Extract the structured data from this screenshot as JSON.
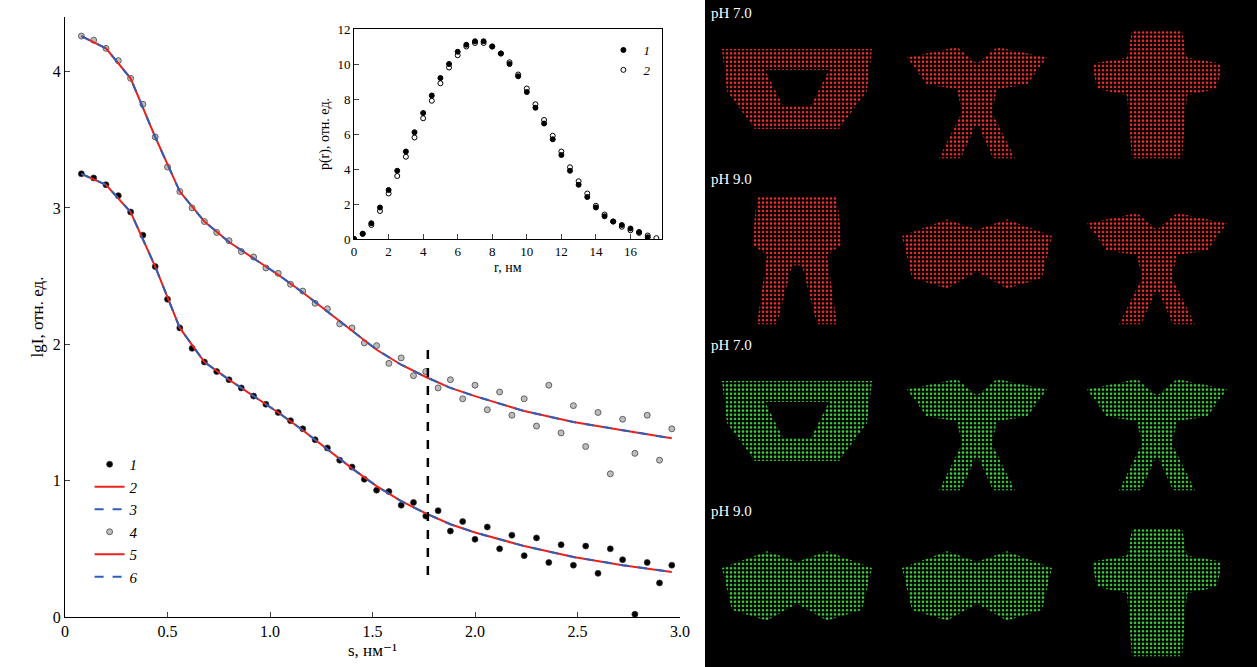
{
  "chart_data": [
    {
      "type": "scatter",
      "x_label": "s, нм⁻¹",
      "y_label": "lgI, отн. ед.",
      "xlim": [
        0,
        3.0
      ],
      "xticks": [
        0,
        0.5,
        {
          "value": 1,
          "label": "1.0"
        },
        1.5,
        {
          "value": 2,
          "label": "2.0"
        },
        2.5,
        {
          "value": 3,
          "label": "3.0"
        }
      ],
      "ylim": [
        0,
        4.4
      ],
      "yticks": [
        0,
        1,
        2,
        3,
        4
      ],
      "grid": false,
      "legend": "lower left",
      "cutoff_s": 1.77,
      "series": [
        {
          "name": "1",
          "type": "scatter",
          "marker": "circle",
          "color": "#000000",
          "x": [
            0.08,
            0.14,
            0.2,
            0.26,
            0.32,
            0.38,
            0.44,
            0.5,
            0.56,
            0.62,
            0.68,
            0.74,
            0.8,
            0.86,
            0.92,
            0.98,
            1.04,
            1.1,
            1.16,
            1.22,
            1.28,
            1.34,
            1.4,
            1.46,
            1.52,
            1.58,
            1.64,
            1.7,
            1.76,
            1.82,
            1.88,
            1.94,
            2.0,
            2.06,
            2.12,
            2.18,
            2.24,
            2.3,
            2.36,
            2.42,
            2.48,
            2.54,
            2.6,
            2.66,
            2.72,
            2.78,
            2.84,
            2.9,
            2.96
          ],
          "values": [
            3.25,
            3.22,
            3.17,
            3.09,
            2.97,
            2.8,
            2.57,
            2.33,
            2.12,
            1.97,
            1.87,
            1.8,
            1.74,
            1.68,
            1.62,
            1.56,
            1.5,
            1.44,
            1.38,
            1.3,
            1.24,
            1.15,
            1.1,
            1.01,
            0.93,
            0.92,
            0.82,
            0.84,
            0.74,
            0.78,
            0.63,
            0.7,
            0.57,
            0.66,
            0.5,
            0.6,
            0.45,
            0.58,
            0.4,
            0.53,
            0.38,
            0.52,
            0.32,
            0.5,
            0.42,
            0.02,
            0.4,
            0.25,
            0.38
          ]
        },
        {
          "name": "2",
          "type": "line",
          "line_style": "solid",
          "color": "#e8231e",
          "x": [
            0.08,
            0.2,
            0.32,
            0.44,
            0.56,
            0.68,
            0.8,
            0.92,
            1.04,
            1.16,
            1.28,
            1.4,
            1.52,
            1.64,
            1.76,
            1.88,
            2.0,
            2.24,
            2.48,
            2.72,
            2.96
          ],
          "values": [
            3.25,
            3.17,
            2.97,
            2.57,
            2.12,
            1.87,
            1.74,
            1.62,
            1.5,
            1.37,
            1.23,
            1.09,
            0.96,
            0.85,
            0.76,
            0.68,
            0.62,
            0.52,
            0.44,
            0.38,
            0.33
          ]
        },
        {
          "name": "3",
          "type": "line",
          "line_style": "dashed",
          "color": "#2c5fb8",
          "x": [
            0.08,
            0.2,
            0.32,
            0.44,
            0.56,
            0.68,
            0.8,
            0.92,
            1.04,
            1.16,
            1.28,
            1.4,
            1.52,
            1.64,
            1.76,
            1.88,
            2.0,
            2.24,
            2.48,
            2.72,
            2.96
          ],
          "values": [
            3.25,
            3.17,
            2.97,
            2.57,
            2.12,
            1.87,
            1.74,
            1.62,
            1.5,
            1.37,
            1.23,
            1.09,
            0.96,
            0.85,
            0.76,
            0.68,
            0.62,
            0.52,
            0.44,
            0.38,
            0.33
          ]
        },
        {
          "name": "4",
          "type": "scatter",
          "marker": "circle",
          "color": "#bdbdbd",
          "x": [
            0.08,
            0.14,
            0.2,
            0.26,
            0.32,
            0.38,
            0.44,
            0.5,
            0.56,
            0.62,
            0.68,
            0.74,
            0.8,
            0.86,
            0.92,
            0.98,
            1.04,
            1.1,
            1.16,
            1.22,
            1.28,
            1.34,
            1.4,
            1.46,
            1.52,
            1.58,
            1.64,
            1.7,
            1.76,
            1.82,
            1.88,
            1.94,
            2.0,
            2.06,
            2.12,
            2.18,
            2.24,
            2.3,
            2.36,
            2.42,
            2.48,
            2.54,
            2.6,
            2.66,
            2.72,
            2.78,
            2.84,
            2.9,
            2.96
          ],
          "values": [
            4.26,
            4.23,
            4.17,
            4.08,
            3.95,
            3.76,
            3.52,
            3.3,
            3.12,
            3.0,
            2.9,
            2.82,
            2.76,
            2.68,
            2.64,
            2.56,
            2.52,
            2.44,
            2.39,
            2.3,
            2.26,
            2.15,
            2.12,
            2.01,
            1.99,
            1.86,
            1.9,
            1.77,
            1.8,
            1.68,
            1.74,
            1.6,
            1.7,
            1.52,
            1.65,
            1.48,
            1.6,
            1.4,
            1.7,
            1.35,
            1.55,
            1.25,
            1.5,
            1.05,
            1.45,
            1.2,
            1.48,
            1.15,
            1.38
          ]
        },
        {
          "name": "5",
          "type": "line",
          "line_style": "solid",
          "color": "#e8231e",
          "x": [
            0.08,
            0.2,
            0.32,
            0.44,
            0.56,
            0.68,
            0.8,
            0.92,
            1.04,
            1.16,
            1.28,
            1.4,
            1.52,
            1.64,
            1.76,
            1.88,
            2.0,
            2.24,
            2.48,
            2.72,
            2.96
          ],
          "values": [
            4.26,
            4.17,
            3.95,
            3.52,
            3.12,
            2.9,
            2.75,
            2.63,
            2.51,
            2.38,
            2.24,
            2.1,
            1.96,
            1.85,
            1.76,
            1.68,
            1.62,
            1.51,
            1.43,
            1.37,
            1.31
          ]
        },
        {
          "name": "6",
          "type": "line",
          "line_style": "dashed",
          "color": "#2c5fb8",
          "x": [
            0.08,
            0.2,
            0.32,
            0.44,
            0.56,
            0.68,
            0.8,
            0.92,
            1.04,
            1.16,
            1.28,
            1.4,
            1.52,
            1.64,
            1.76,
            1.88,
            2.0,
            2.24,
            2.48,
            2.72,
            2.96
          ],
          "values": [
            4.26,
            4.17,
            3.95,
            3.52,
            3.12,
            2.9,
            2.75,
            2.63,
            2.51,
            2.38,
            2.24,
            2.1,
            1.96,
            1.85,
            1.76,
            1.68,
            1.62,
            1.51,
            1.43,
            1.37,
            1.31
          ]
        }
      ]
    },
    {
      "type": "scatter",
      "x_label": "r, нм",
      "y_label": "p(r), отн. ед.",
      "xlim": [
        0,
        17.8
      ],
      "xticks": [
        0,
        2,
        4,
        6,
        8,
        10,
        12,
        14,
        16
      ],
      "ylim": [
        0,
        12
      ],
      "yticks": [
        0,
        2,
        4,
        6,
        8,
        10,
        12
      ],
      "grid": false,
      "legend": "upper right",
      "series": [
        {
          "name": "1",
          "marker": "circle",
          "color": "#000000",
          "x": [
            0,
            0.5,
            1,
            1.5,
            2,
            2.5,
            3,
            3.5,
            4,
            4.5,
            5,
            5.5,
            6,
            6.5,
            7,
            7.5,
            8,
            8.5,
            9,
            9.5,
            10,
            10.5,
            11,
            11.5,
            12,
            12.5,
            13,
            13.5,
            14,
            14.5,
            15,
            15.5,
            16,
            16.5,
            17
          ],
          "values": [
            0,
            0.3,
            0.9,
            1.8,
            2.8,
            3.9,
            5.0,
            6.1,
            7.2,
            8.2,
            9.2,
            10.0,
            10.7,
            11.1,
            11.3,
            11.3,
            11.0,
            10.6,
            10.0,
            9.3,
            8.4,
            7.5,
            6.6,
            5.7,
            4.8,
            3.9,
            3.1,
            2.4,
            1.8,
            1.3,
            1.0,
            0.8,
            0.6,
            0.4,
            0.1
          ]
        },
        {
          "name": "2",
          "marker": "open_circle",
          "color": "#000000",
          "x": [
            0,
            0.5,
            1,
            1.5,
            2,
            2.5,
            3,
            3.5,
            4,
            4.5,
            5,
            5.5,
            6,
            6.5,
            7,
            7.5,
            8,
            8.5,
            9,
            9.5,
            10,
            10.5,
            11,
            11.5,
            12,
            12.5,
            13,
            13.5,
            14,
            14.5,
            15,
            15.5,
            16,
            16.5,
            17,
            17.5
          ],
          "values": [
            0,
            0.3,
            0.8,
            1.6,
            2.6,
            3.6,
            4.7,
            5.8,
            6.9,
            7.9,
            8.9,
            9.8,
            10.5,
            11.0,
            11.2,
            11.2,
            11.0,
            10.6,
            10.1,
            9.4,
            8.6,
            7.7,
            6.8,
            5.9,
            5.0,
            4.1,
            3.3,
            2.6,
            1.9,
            1.4,
            1.0,
            0.7,
            0.5,
            0.35,
            0.2,
            0.05
          ]
        }
      ]
    }
  ],
  "models_panel": {
    "rows": [
      {
        "label": "pH 7.0",
        "color": "#e8302a"
      },
      {
        "label": "pH 9.0",
        "color": "#e8302a"
      },
      {
        "label": "pH 7.0",
        "color": "#3ccc3c"
      },
      {
        "label": "pH 9.0",
        "color": "#3ccc3c"
      }
    ]
  }
}
